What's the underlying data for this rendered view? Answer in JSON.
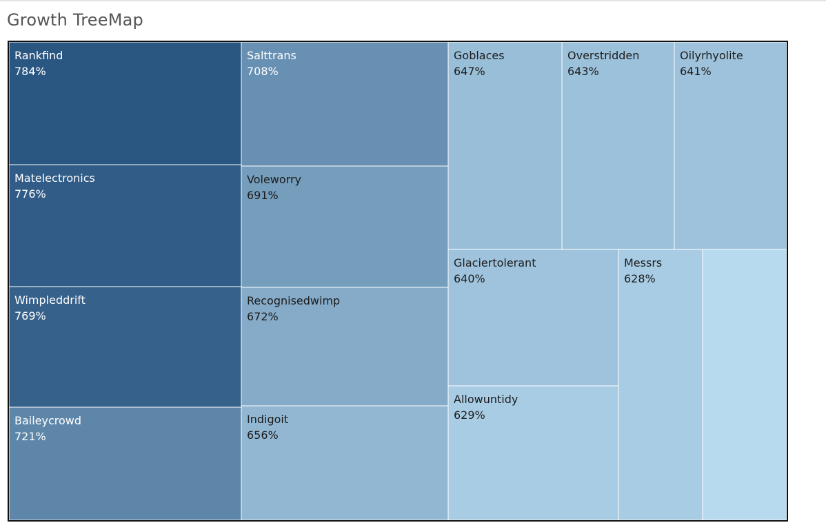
{
  "header": {
    "title": "Growth TreeMap"
  },
  "chart_data": {
    "type": "treemap",
    "title": "Growth TreeMap",
    "value_unit": "%",
    "color_scale": {
      "low": "#b7daef",
      "high": "#2a5682"
    },
    "items": [
      {
        "name": "Rankfind",
        "label": "784%",
        "value": 784
      },
      {
        "name": "Matelectronics",
        "label": "776%",
        "value": 776
      },
      {
        "name": "Wimpleddrift",
        "label": "769%",
        "value": 769
      },
      {
        "name": "Baileycrowd",
        "label": "721%",
        "value": 721
      },
      {
        "name": "Salttrans",
        "label": "708%",
        "value": 708
      },
      {
        "name": "Voleworry",
        "label": "691%",
        "value": 691
      },
      {
        "name": "Recognisedwimp",
        "label": "672%",
        "value": 672
      },
      {
        "name": "Indigoit",
        "label": "656%",
        "value": 656
      },
      {
        "name": "Goblaces",
        "label": "647%",
        "value": 647
      },
      {
        "name": "Overstridden",
        "label": "643%",
        "value": 643
      },
      {
        "name": "Oilyrhyolite",
        "label": "641%",
        "value": 641
      },
      {
        "name": "Glaciertolerant",
        "label": "640%",
        "value": 640
      },
      {
        "name": "Allowuntidy",
        "label": "629%",
        "value": 629
      },
      {
        "name": "Messrs",
        "label": "628%",
        "value": 628
      },
      {
        "name": "",
        "label": "",
        "value": 610
      }
    ]
  }
}
